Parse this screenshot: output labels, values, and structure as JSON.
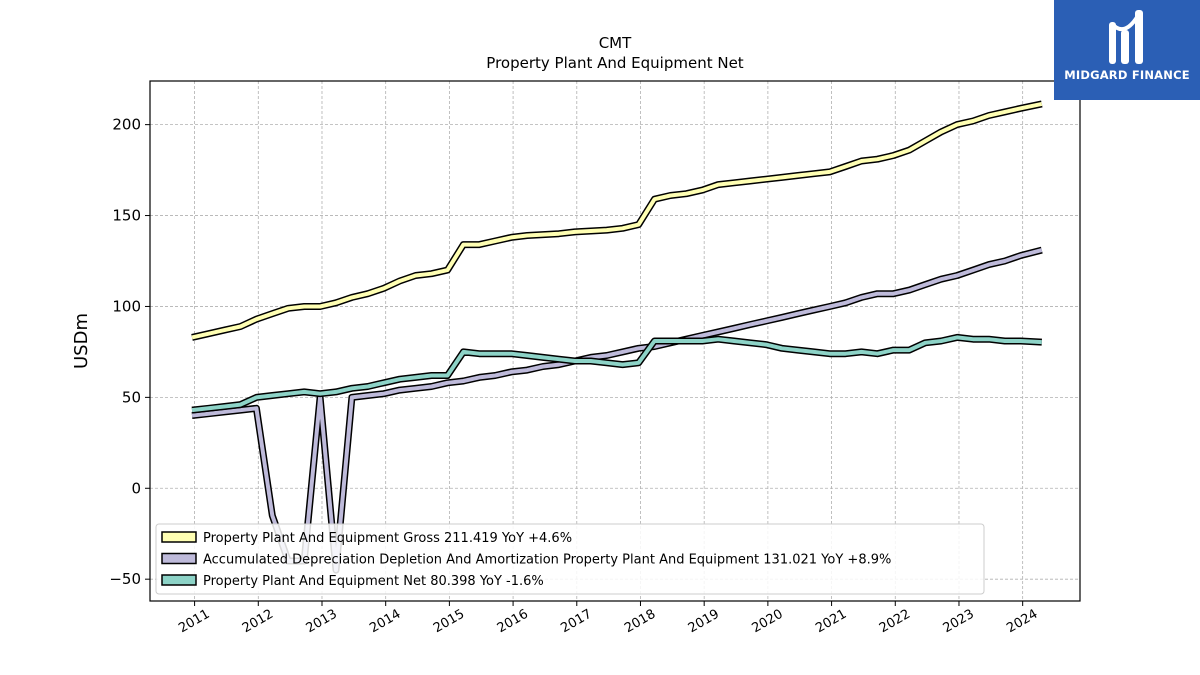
{
  "brand": {
    "name": "MIDGARD FINANCE",
    "color": "#2b5fb5"
  },
  "chart_data": {
    "type": "line",
    "title": "CMT",
    "subtitle": "Property Plant And Equipment Net",
    "ylabel": "USDm",
    "xlabel": "",
    "xlim": [
      2010.3,
      2024.9
    ],
    "ylim": [
      -62,
      224
    ],
    "yticks": [
      -50,
      0,
      50,
      100,
      150,
      200
    ],
    "xticks": [
      "2011",
      "2012",
      "2013",
      "2014",
      "2015",
      "2016",
      "2017",
      "2018",
      "2019",
      "2020",
      "2021",
      "2022",
      "2023",
      "2024"
    ],
    "grid": true,
    "legend_position": "lower-left",
    "series": [
      {
        "name": "Property Plant And Equipment Gross",
        "legend": "Property Plant And Equipment Gross  211.419 YoY +4.6%",
        "color": "#ffffb3",
        "points": [
          [
            2010.96,
            83
          ],
          [
            2011.22,
            85
          ],
          [
            2011.47,
            87
          ],
          [
            2011.72,
            89
          ],
          [
            2011.97,
            93
          ],
          [
            2012.22,
            96
          ],
          [
            2012.47,
            99
          ],
          [
            2012.72,
            100
          ],
          [
            2012.97,
            100
          ],
          [
            2013.22,
            102
          ],
          [
            2013.47,
            105
          ],
          [
            2013.72,
            107
          ],
          [
            2013.97,
            110
          ],
          [
            2014.22,
            114
          ],
          [
            2014.47,
            117
          ],
          [
            2014.72,
            118
          ],
          [
            2014.97,
            120
          ],
          [
            2015.22,
            134
          ],
          [
            2015.47,
            134
          ],
          [
            2015.72,
            136
          ],
          [
            2015.97,
            138
          ],
          [
            2016.22,
            139
          ],
          [
            2016.47,
            139.5
          ],
          [
            2016.72,
            140
          ],
          [
            2016.97,
            141
          ],
          [
            2017.22,
            141.5
          ],
          [
            2017.47,
            142
          ],
          [
            2017.72,
            143
          ],
          [
            2017.97,
            145
          ],
          [
            2018.22,
            159
          ],
          [
            2018.47,
            161
          ],
          [
            2018.72,
            162
          ],
          [
            2018.97,
            164
          ],
          [
            2019.22,
            167
          ],
          [
            2019.47,
            168
          ],
          [
            2019.72,
            169
          ],
          [
            2019.97,
            170
          ],
          [
            2020.22,
            171
          ],
          [
            2020.47,
            172
          ],
          [
            2020.72,
            173
          ],
          [
            2020.97,
            174
          ],
          [
            2021.22,
            177
          ],
          [
            2021.47,
            180
          ],
          [
            2021.72,
            181
          ],
          [
            2021.97,
            183
          ],
          [
            2022.22,
            186
          ],
          [
            2022.47,
            191
          ],
          [
            2022.72,
            196
          ],
          [
            2022.97,
            200
          ],
          [
            2023.22,
            202
          ],
          [
            2023.47,
            205
          ],
          [
            2023.72,
            207
          ],
          [
            2023.97,
            209
          ],
          [
            2024.3,
            211.4
          ]
        ]
      },
      {
        "name": "Accumulated Depreciation Depletion And Amortization Property Plant And Equipment",
        "legend": "Accumulated Depreciation Depletion And Amortization Property Plant And Equipment  131.021 YoY +8.9%",
        "color": "#bebada",
        "points": [
          [
            2010.96,
            40
          ],
          [
            2011.22,
            41
          ],
          [
            2011.47,
            42
          ],
          [
            2011.72,
            43
          ],
          [
            2011.97,
            44
          ],
          [
            2012.22,
            -15
          ],
          [
            2012.47,
            -40
          ],
          [
            2012.72,
            -40
          ],
          [
            2012.97,
            50
          ],
          [
            2013.22,
            -45
          ],
          [
            2013.47,
            50
          ],
          [
            2013.72,
            51
          ],
          [
            2013.97,
            52
          ],
          [
            2014.22,
            54
          ],
          [
            2014.47,
            55
          ],
          [
            2014.72,
            56
          ],
          [
            2014.97,
            58
          ],
          [
            2015.22,
            59
          ],
          [
            2015.47,
            61
          ],
          [
            2015.72,
            62
          ],
          [
            2015.97,
            64
          ],
          [
            2016.22,
            65
          ],
          [
            2016.47,
            67
          ],
          [
            2016.72,
            68
          ],
          [
            2016.97,
            70
          ],
          [
            2017.22,
            72
          ],
          [
            2017.47,
            73
          ],
          [
            2017.72,
            75
          ],
          [
            2017.97,
            77
          ],
          [
            2018.22,
            78
          ],
          [
            2018.47,
            80
          ],
          [
            2018.72,
            82
          ],
          [
            2018.97,
            84
          ],
          [
            2019.22,
            86
          ],
          [
            2019.47,
            88
          ],
          [
            2019.72,
            90
          ],
          [
            2019.97,
            92
          ],
          [
            2020.22,
            94
          ],
          [
            2020.47,
            96
          ],
          [
            2020.72,
            98
          ],
          [
            2020.97,
            100
          ],
          [
            2021.22,
            102
          ],
          [
            2021.47,
            105
          ],
          [
            2021.72,
            107
          ],
          [
            2021.97,
            107
          ],
          [
            2022.22,
            109
          ],
          [
            2022.47,
            112
          ],
          [
            2022.72,
            115
          ],
          [
            2022.97,
            117
          ],
          [
            2023.22,
            120
          ],
          [
            2023.47,
            123
          ],
          [
            2023.72,
            125
          ],
          [
            2023.97,
            128
          ],
          [
            2024.3,
            131
          ]
        ]
      },
      {
        "name": "Property Plant And Equipment Net",
        "legend": "Property Plant And Equipment Net  80.398 YoY -1.6%",
        "color": "#8dd3c7",
        "points": [
          [
            2010.96,
            43
          ],
          [
            2011.22,
            44
          ],
          [
            2011.47,
            45
          ],
          [
            2011.72,
            46
          ],
          [
            2011.97,
            50
          ],
          [
            2012.22,
            51
          ],
          [
            2012.47,
            52
          ],
          [
            2012.72,
            53
          ],
          [
            2012.97,
            52
          ],
          [
            2013.22,
            53
          ],
          [
            2013.47,
            55
          ],
          [
            2013.72,
            56
          ],
          [
            2013.97,
            58
          ],
          [
            2014.22,
            60
          ],
          [
            2014.47,
            61
          ],
          [
            2014.72,
            62
          ],
          [
            2014.97,
            62
          ],
          [
            2015.22,
            75
          ],
          [
            2015.47,
            74
          ],
          [
            2015.72,
            74
          ],
          [
            2015.97,
            74
          ],
          [
            2016.22,
            73
          ],
          [
            2016.47,
            72
          ],
          [
            2016.72,
            71
          ],
          [
            2016.97,
            70
          ],
          [
            2017.22,
            70
          ],
          [
            2017.47,
            69
          ],
          [
            2017.72,
            68
          ],
          [
            2017.97,
            69
          ],
          [
            2018.22,
            81
          ],
          [
            2018.47,
            81
          ],
          [
            2018.72,
            81
          ],
          [
            2018.97,
            81
          ],
          [
            2019.22,
            82
          ],
          [
            2019.47,
            81
          ],
          [
            2019.72,
            80
          ],
          [
            2019.97,
            79
          ],
          [
            2020.22,
            77
          ],
          [
            2020.47,
            76
          ],
          [
            2020.72,
            75
          ],
          [
            2020.97,
            74
          ],
          [
            2021.22,
            74
          ],
          [
            2021.47,
            75
          ],
          [
            2021.72,
            74
          ],
          [
            2021.97,
            76
          ],
          [
            2022.22,
            76
          ],
          [
            2022.47,
            80
          ],
          [
            2022.72,
            81
          ],
          [
            2022.97,
            83
          ],
          [
            2023.22,
            82
          ],
          [
            2023.47,
            82
          ],
          [
            2023.72,
            81
          ],
          [
            2023.97,
            81
          ],
          [
            2024.3,
            80.4
          ]
        ]
      }
    ]
  }
}
